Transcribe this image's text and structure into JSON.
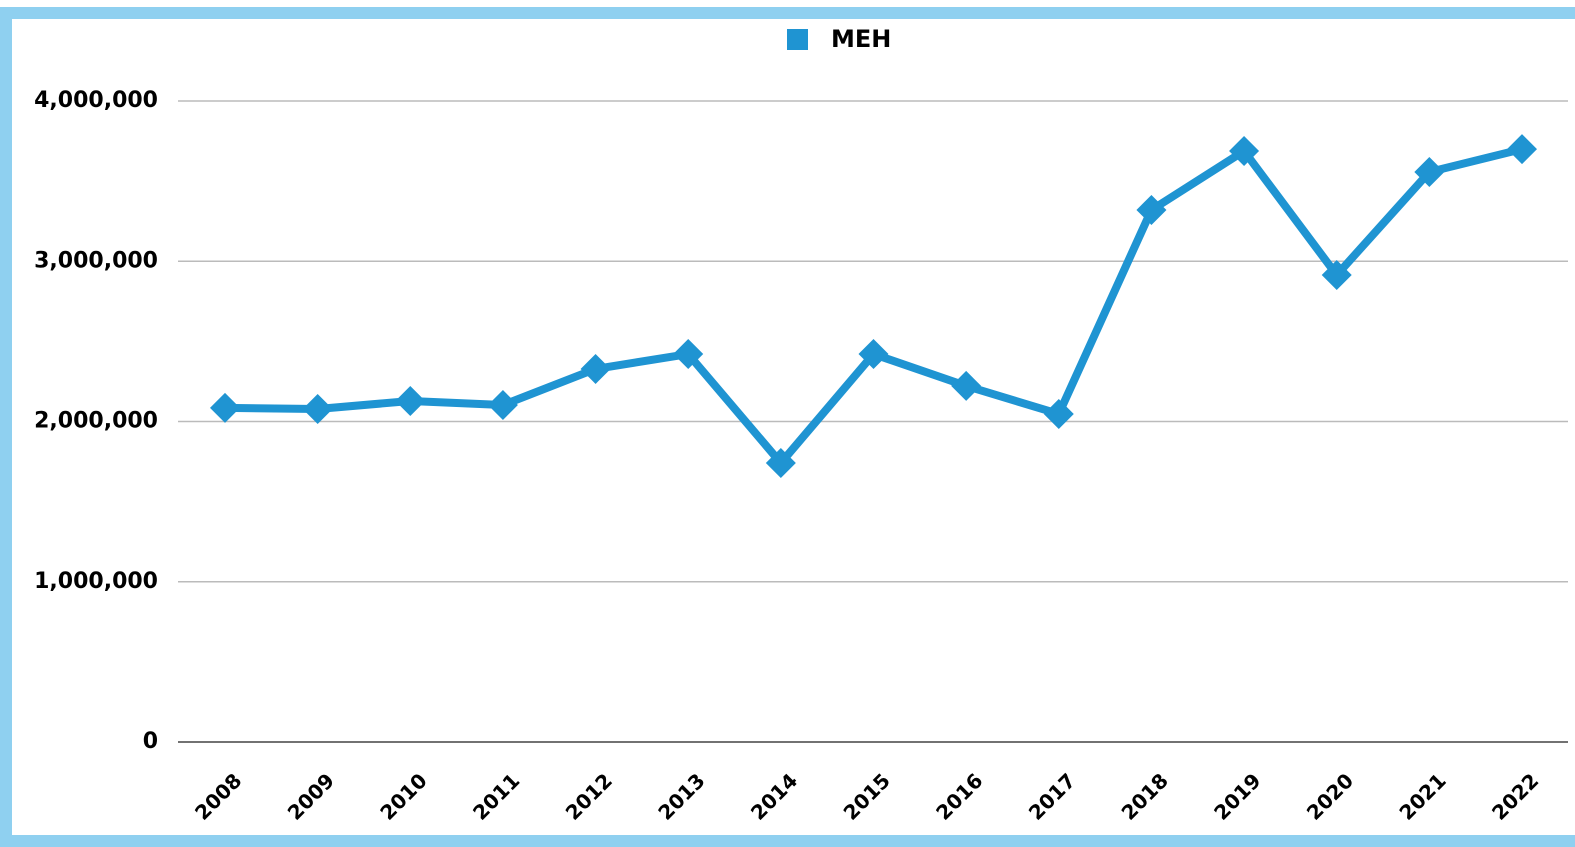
{
  "chart_data": {
    "type": "line",
    "categories": [
      "2008",
      "2009",
      "2010",
      "2011",
      "2012",
      "2013",
      "2014",
      "2015",
      "2016",
      "2017",
      "2018",
      "2019",
      "2020",
      "2021",
      "2022"
    ],
    "series": [
      {
        "name": "MEH",
        "color": "#1f94d2",
        "values": [
          2085000,
          2078000,
          2128000,
          2103000,
          2328000,
          2421000,
          1741000,
          2421000,
          2222000,
          2047000,
          3320000,
          3688000,
          2914000,
          3557000,
          3700000
        ]
      }
    ],
    "ylim": [
      0,
      4000000
    ],
    "yticks": [
      0,
      {
        "value": 1000000,
        "label": "1,000,000"
      },
      {
        "value": 2000000,
        "label": "2,000,000"
      },
      {
        "value": 3000000,
        "label": "3,000,000"
      },
      {
        "value": 4000000,
        "label": "4,000,000"
      }
    ],
    "grid": true,
    "legend": "top"
  }
}
